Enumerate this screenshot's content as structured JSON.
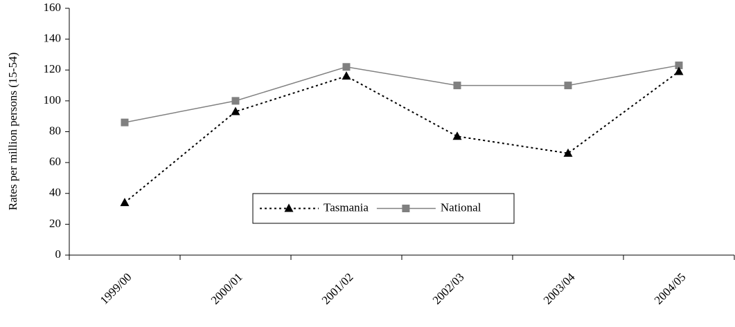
{
  "chart_data": {
    "type": "line",
    "y_label": "Rates per million persons (15-54)",
    "categories": [
      "1999/00",
      "2000/01",
      "2001/02",
      "2002/03",
      "2003/04",
      "2004/05"
    ],
    "series": [
      {
        "name": "Tasmania",
        "color": "#000000",
        "dash": true,
        "marker": "triangle",
        "values": [
          34,
          93,
          116,
          77,
          66,
          119
        ]
      },
      {
        "name": "National",
        "color": "#808080",
        "dash": false,
        "marker": "square",
        "values": [
          86,
          100,
          122,
          110,
          110,
          123
        ]
      }
    ],
    "ylim": [
      0,
      160
    ],
    "yticks": [
      0,
      20,
      40,
      60,
      80,
      100,
      120,
      140,
      160
    ],
    "grid": false
  }
}
